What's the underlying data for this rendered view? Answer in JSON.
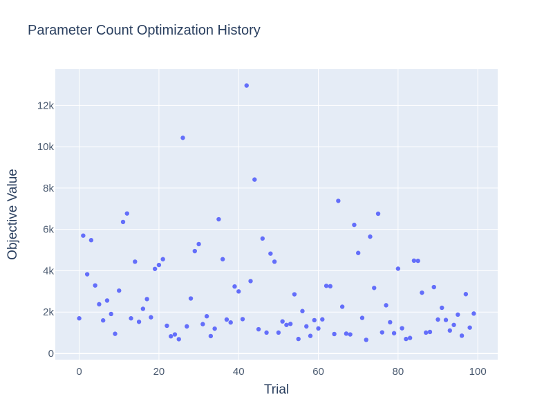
{
  "chart_data": {
    "type": "scatter",
    "title": "Parameter Count Optimization History",
    "xlabel": "Trial",
    "ylabel": "Objective Value",
    "xlim": [
      -6,
      105
    ],
    "ylim": [
      -300,
      13750
    ],
    "xticks": [
      0,
      20,
      40,
      60,
      80,
      100
    ],
    "xtick_labels": [
      "0",
      "20",
      "40",
      "60",
      "80",
      "100"
    ],
    "yticks": [
      0,
      2000,
      4000,
      6000,
      8000,
      10000,
      12000
    ],
    "ytick_labels": [
      "0",
      "2k",
      "4k",
      "6k",
      "8k",
      "10k",
      "12k"
    ],
    "grid": true,
    "marker_color": "#636efa",
    "background": "#e5ecf6",
    "series": [
      {
        "x": [
          0,
          1,
          2,
          3,
          4,
          5,
          6,
          7,
          8,
          9,
          10,
          11,
          12,
          13,
          14,
          15,
          16,
          17,
          18,
          19,
          20,
          21,
          22,
          23,
          24,
          25,
          26,
          27,
          28,
          29,
          30,
          31,
          32,
          33,
          34,
          35,
          36,
          37,
          38,
          39,
          40,
          41,
          42,
          43,
          44,
          45,
          46,
          47,
          48,
          49,
          50,
          51,
          52,
          53,
          54,
          55,
          56,
          57,
          58,
          59,
          60,
          61,
          62,
          63,
          64,
          65,
          66,
          67,
          68,
          69,
          70,
          71,
          72,
          73,
          74,
          75,
          76,
          77,
          78,
          79,
          80,
          81,
          82,
          83,
          84,
          85,
          86,
          87,
          88,
          89,
          90,
          91,
          92,
          93,
          94,
          95,
          96,
          97,
          98,
          99
        ],
        "y": [
          1700,
          5700,
          3830,
          5480,
          3290,
          2380,
          1600,
          2560,
          1910,
          950,
          3040,
          6360,
          6770,
          1700,
          4440,
          1530,
          2160,
          2630,
          1750,
          4090,
          4280,
          4560,
          1340,
          830,
          920,
          690,
          10430,
          1310,
          2660,
          4950,
          5290,
          1420,
          1800,
          840,
          1200,
          6490,
          4560,
          1640,
          1500,
          3240,
          3000,
          1660,
          12960,
          3500,
          8410,
          1170,
          5560,
          1010,
          4830,
          4440,
          1010,
          1550,
          1380,
          1430,
          2860,
          700,
          2050,
          1310,
          850,
          1610,
          1210,
          1650,
          3270,
          3250,
          940,
          7380,
          2260,
          960,
          920,
          6220,
          4860,
          1720,
          660,
          5650,
          3170,
          6760,
          1020,
          2330,
          1510,
          980,
          4100,
          1220,
          700,
          750,
          4490,
          4480,
          2940,
          1010,
          1040,
          3210,
          1640,
          2210,
          1620,
          1110,
          1380,
          1880,
          860,
          2870,
          1250,
          1930
        ]
      }
    ]
  }
}
